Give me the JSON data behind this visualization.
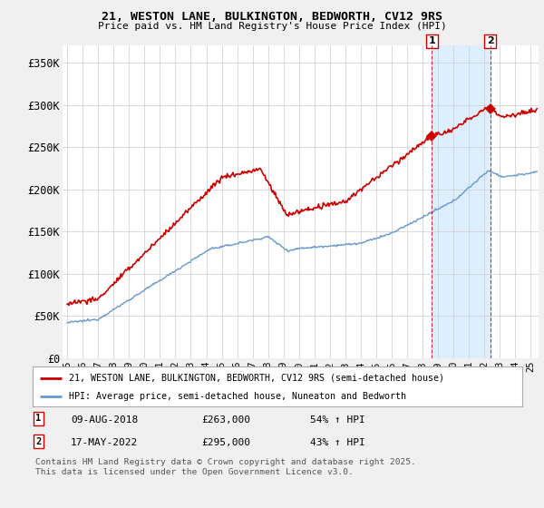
{
  "title": "21, WESTON LANE, BULKINGTON, BEDWORTH, CV12 9RS",
  "subtitle": "Price paid vs. HM Land Registry's House Price Index (HPI)",
  "ylabel_ticks": [
    "£0",
    "£50K",
    "£100K",
    "£150K",
    "£200K",
    "£250K",
    "£300K",
    "£350K"
  ],
  "ytick_values": [
    0,
    50000,
    100000,
    150000,
    200000,
    250000,
    300000,
    350000
  ],
  "ylim": [
    0,
    370000
  ],
  "xlim_start": 1994.7,
  "xlim_end": 2025.5,
  "legend_line1": "21, WESTON LANE, BULKINGTON, BEDWORTH, CV12 9RS (semi-detached house)",
  "legend_line2": "HPI: Average price, semi-detached house, Nuneaton and Bedworth",
  "transaction1_date": "09-AUG-2018",
  "transaction1_price": "£263,000",
  "transaction1_hpi": "54% ↑ HPI",
  "transaction2_date": "17-MAY-2022",
  "transaction2_price": "£295,000",
  "transaction2_hpi": "43% ↑ HPI",
  "footnote": "Contains HM Land Registry data © Crown copyright and database right 2025.\nThis data is licensed under the Open Government Licence v3.0.",
  "red_color": "#cc0000",
  "blue_color": "#6699cc",
  "shade_color": "#ddeeff",
  "background_color": "#f0f0f0",
  "plot_bg_color": "#ffffff",
  "grid_color": "#cccccc",
  "marker1_x": 2018.6,
  "marker1_y": 263000,
  "marker2_x": 2022.37,
  "marker2_y": 295000
}
